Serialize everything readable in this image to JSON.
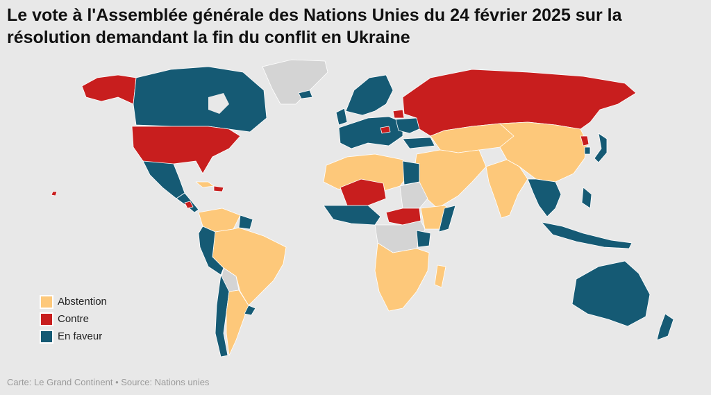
{
  "title": "Le vote à l'Assemblée générale des Nations Unies du 24 février 2025 sur la résolution demandant la fin du conflit en Ukraine",
  "colors": {
    "background": "#e8e8e8",
    "no_data": "#d4d4d4",
    "abstention": "#fdc87a",
    "contre": "#c81e1e",
    "en_faveur": "#155a74",
    "border": "#ffffff"
  },
  "legend": [
    {
      "label": "Abstention",
      "color": "#fdc87a"
    },
    {
      "label": "Contre",
      "color": "#c81e1e"
    },
    {
      "label": "En faveur",
      "color": "#155a74"
    }
  ],
  "footer": "Carte: Le Grand Continent • Source: Nations unies"
}
